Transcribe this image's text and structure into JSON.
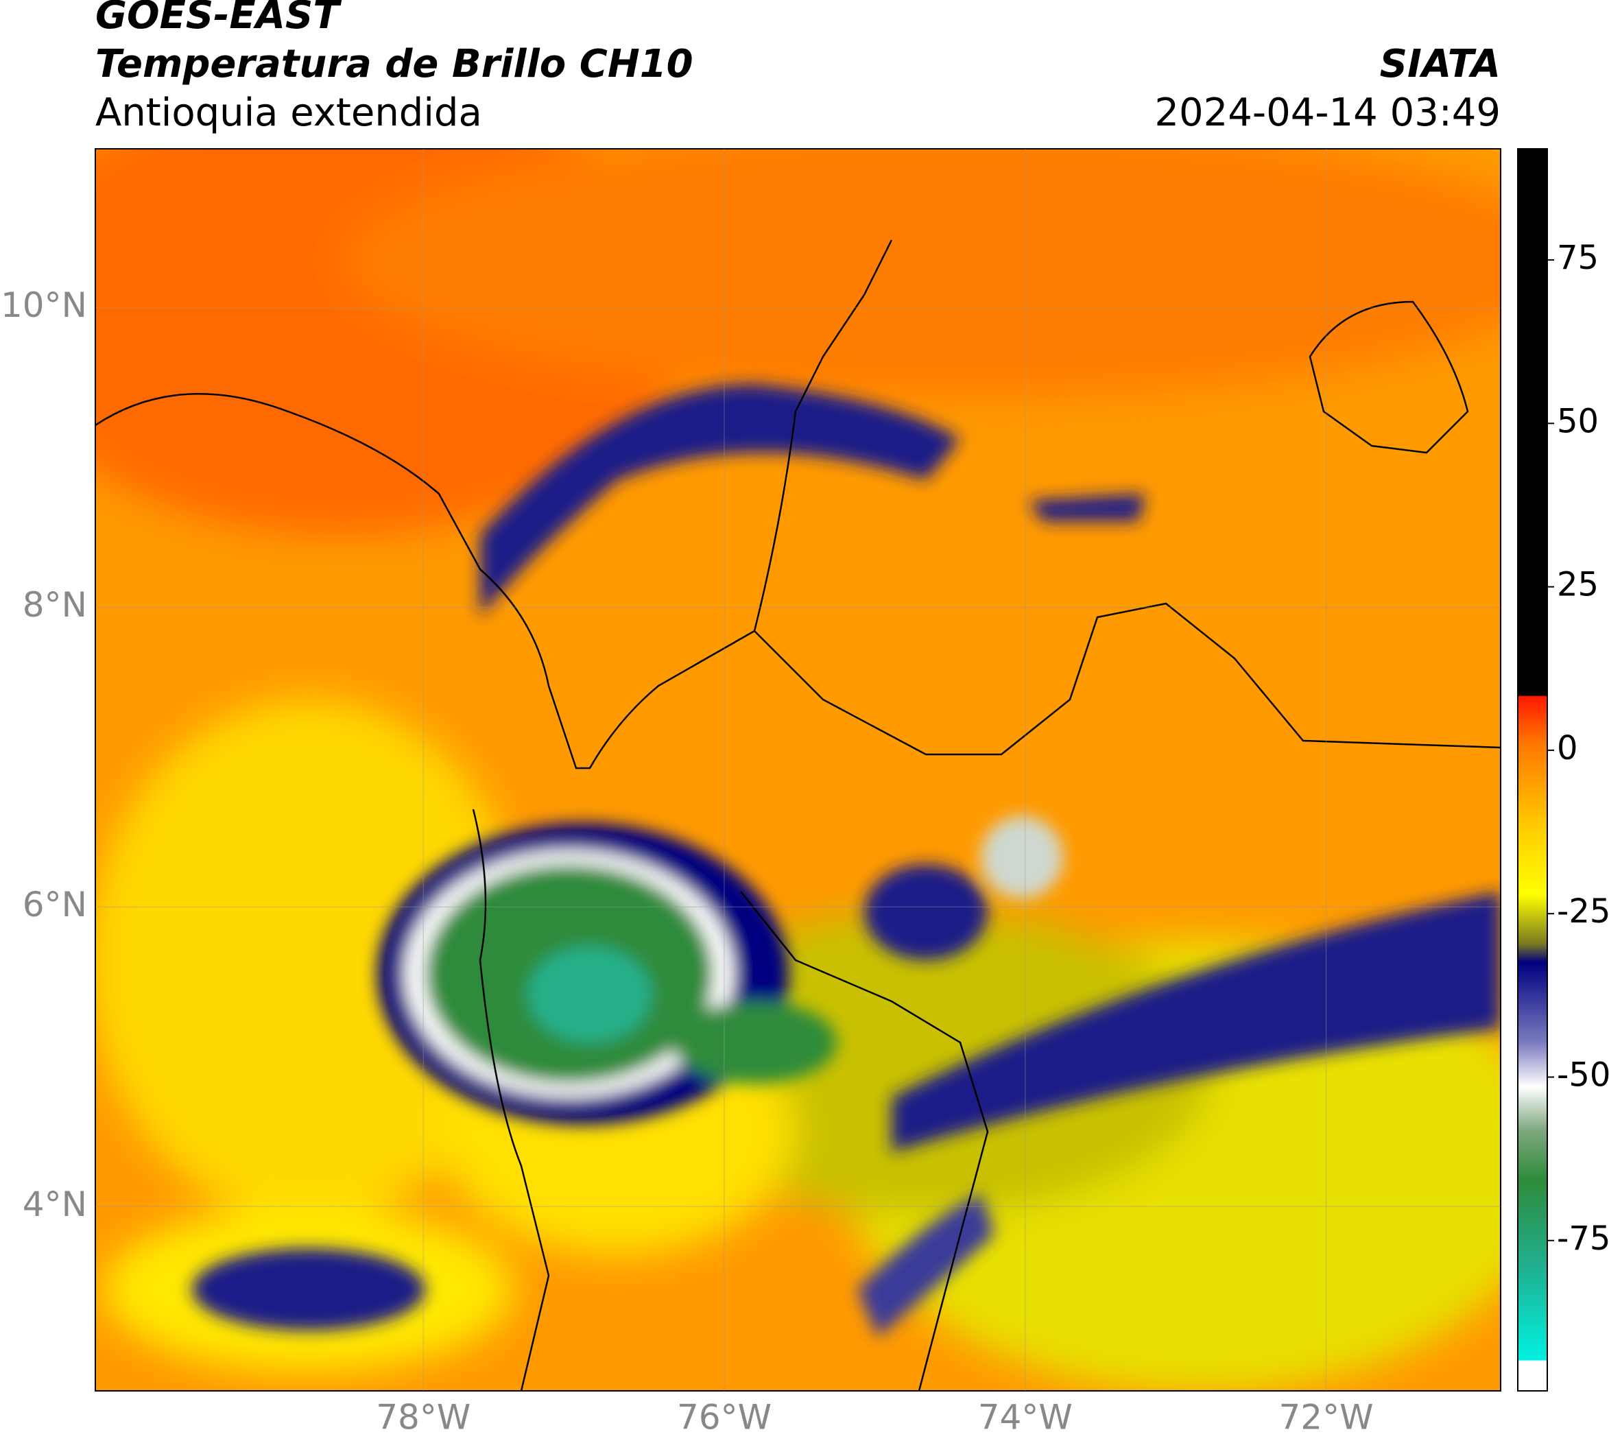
{
  "header": {
    "title": "GOES-EAST",
    "subtitle": "Temperatura de Brillo CH10",
    "region": "Antioquia extendida",
    "source": "SIATA",
    "timestamp": "2024-04-14 03:49"
  },
  "map": {
    "lonlim": [
      -80.18,
      -70.84
    ],
    "latlim": [
      2.77,
      11.06
    ],
    "lonticks": [
      {
        "value": -78,
        "label": "78°W"
      },
      {
        "value": -76,
        "label": "76°W"
      },
      {
        "value": -74,
        "label": "74°W"
      },
      {
        "value": -72,
        "label": "72°W"
      }
    ],
    "latticks": [
      {
        "value": 10,
        "label": "10°N"
      },
      {
        "value": 8,
        "label": "8°N"
      },
      {
        "value": 6,
        "label": "6°N"
      },
      {
        "value": 4,
        "label": "4°N"
      }
    ],
    "grid": true
  },
  "colorbar": {
    "lim": [
      -98,
      92
    ],
    "ticks": [
      75,
      50,
      25,
      0,
      -25,
      -50,
      -75
    ]
  }
}
